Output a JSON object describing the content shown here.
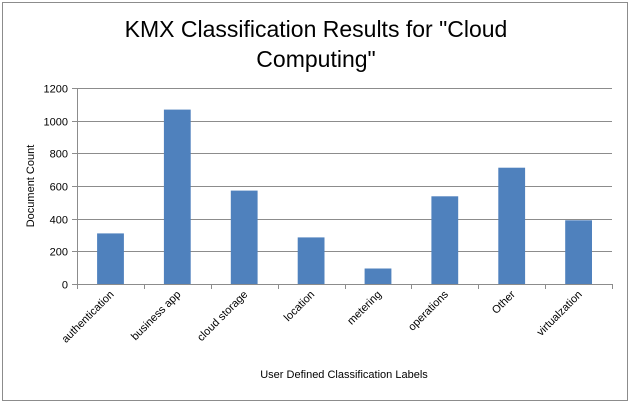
{
  "chart_data": {
    "type": "bar",
    "title_lines": [
      "KMX Classification Results for \"Cloud",
      "Computing\""
    ],
    "xlabel": "User Defined Classification  Labels",
    "ylabel": "Document Count",
    "categories": [
      "authentication",
      "business app",
      "cloud storage",
      "location",
      "metering",
      "operations",
      "Other",
      "virtualzation"
    ],
    "values": [
      310,
      1068,
      572,
      285,
      95,
      537,
      712,
      390
    ],
    "ylim": [
      0,
      1200
    ],
    "yticks": [
      0,
      200,
      400,
      600,
      800,
      1000,
      1200
    ],
    "ytick_labels": [
      "0",
      "200",
      "400",
      "600",
      "800",
      "1000",
      "1200"
    ],
    "grid": true,
    "legend": "none",
    "bar_color": "#4f81bd",
    "grid_color": "#8c8c8c"
  }
}
